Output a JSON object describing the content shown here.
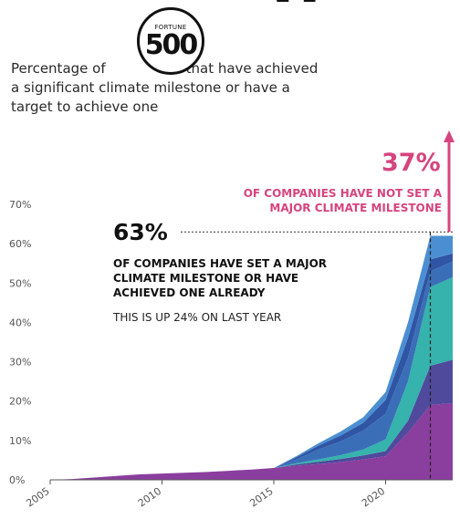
{
  "header": {
    "title_fragment": "g",
    "intro_line1_before": "Percentage of",
    "intro_line1_after": "that have achieved",
    "intro_line2": "a significant climate milestone or have a",
    "intro_line3": "target to achieve one"
  },
  "logo": {
    "top_text": "FORTUNE",
    "number": "500"
  },
  "annotations": {
    "not_set_pct": "37%",
    "not_set_line1": "OF COMPANIES HAVE NOT SET A",
    "not_set_line2": "MAJOR CLIMATE MILESTONE",
    "set_pct": "63%",
    "set_line1": "OF COMPANIES HAVE SET A MAJOR",
    "set_line2": "CLIMATE MILESTONE OR HAVE",
    "set_line3": "ACHIEVED ONE ALREADY",
    "growth_note": "THIS IS UP 24% ON LAST YEAR"
  },
  "colors": {
    "pink": "#d6447f",
    "purple": "#8a3e9e",
    "indigo": "#4f4a9c",
    "teal": "#35b3ac",
    "blue_mid": "#3a6fb8",
    "blue_light": "#4b8fd2",
    "text_dark": "#111111"
  },
  "chart_data": {
    "type": "area",
    "stacked": true,
    "x": [
      2005,
      2006,
      2007,
      2008,
      2009,
      2010,
      2011,
      2012,
      2013,
      2014,
      2015,
      2016,
      2017,
      2018,
      2019,
      2020,
      2021,
      2022,
      2023
    ],
    "series": [
      {
        "values": [
          0,
          0.2,
          0.6,
          1.0,
          1.4,
          1.6,
          1.8,
          2.0,
          2.3,
          2.6,
          3.0,
          3.6,
          4.0,
          4.5,
          5.2,
          6.0,
          12,
          19,
          19.5
        ]
      },
      {
        "values": [
          0,
          0,
          0,
          0,
          0,
          0,
          0,
          0,
          0,
          0,
          0,
          0.3,
          0.6,
          0.8,
          1.0,
          1.3,
          3.0,
          10,
          11
        ]
      },
      {
        "values": [
          0,
          0,
          0,
          0,
          0,
          0,
          0,
          0,
          0,
          0,
          0,
          0.3,
          0.6,
          1.0,
          1.5,
          3.0,
          10,
          20,
          21
        ]
      },
      {
        "values": [
          0,
          0,
          0,
          0,
          0,
          0,
          0,
          0,
          0,
          0,
          0,
          1.0,
          2.5,
          3.5,
          4.8,
          6.5,
          6,
          4,
          4
        ]
      },
      {
        "values": [
          0,
          0,
          0,
          0,
          0,
          0,
          0,
          0,
          0,
          0,
          0,
          0.5,
          1.0,
          1.5,
          2.0,
          3.5,
          5,
          3,
          2
        ]
      },
      {
        "values": [
          0,
          0,
          0,
          0,
          0,
          0,
          0,
          0,
          0,
          0,
          0,
          0.3,
          0.6,
          1.0,
          1.4,
          2.0,
          4,
          6,
          4.5
        ]
      }
    ],
    "series_colors": [
      "#8a3e9e",
      "#4f4a9c",
      "#35b3ac",
      "#3a6fb8",
      "#2f55a4",
      "#4b8fd2"
    ],
    "xlim": [
      2005,
      2023
    ],
    "ylim": [
      0,
      70
    ],
    "yticks": [
      0,
      10,
      20,
      30,
      40,
      50,
      60,
      70
    ],
    "ytick_labels": [
      "0%",
      "10%",
      "20%",
      "30%",
      "40%",
      "50%",
      "60%",
      "70%"
    ],
    "xticks": [
      2005,
      2010,
      2015,
      2020
    ],
    "xtick_labels": [
      "2005",
      "2010",
      "2015",
      "2020"
    ],
    "marker_year": 2022,
    "achieved_level": 63,
    "grid": false,
    "title": "",
    "xlabel": "",
    "ylabel": ""
  }
}
